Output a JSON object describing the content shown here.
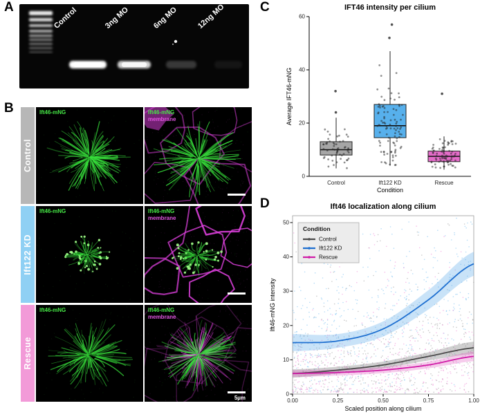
{
  "panel_a": {
    "label": "A",
    "lanes": [
      "Control",
      "3ng MO",
      "6ng MO",
      "12ng MO"
    ],
    "band_intensities": [
      1,
      0.82,
      0.2,
      0.06
    ]
  },
  "panel_b": {
    "label": "B",
    "green_color": "#38e23c",
    "magenta_color": "#e542e5",
    "scale_bar_label": "5µm",
    "rows": [
      {
        "name": "Control",
        "bar_color": "#b7b7b7",
        "left_caption": "Ift46-mNG",
        "right_caption_green": "Ift46-mNG",
        "right_caption_magenta": "membrane"
      },
      {
        "name": "Ift122 KD",
        "bar_color": "#8fd0f4",
        "left_caption": "Ift46-mNG",
        "right_caption_green": "Ift46-mNG",
        "right_caption_magenta": "membrane"
      },
      {
        "name": "Rescue",
        "bar_color": "#f29ad8",
        "left_caption": "Ift46-mNG",
        "right_caption_green": "Ift46-mNG",
        "right_caption_magenta": "membrane"
      }
    ]
  },
  "panel_c": {
    "label": "C"
  },
  "panel_d": {
    "label": "D"
  },
  "chart_data": [
    {
      "type": "boxplot",
      "title": "IFT46 intensity per cilium",
      "xlabel": "Condition",
      "ylabel": "Average IFT46-mNG",
      "ylim": [
        0,
        60
      ],
      "yticks": [
        0,
        20,
        40,
        60
      ],
      "categories": [
        "Control",
        "Ift122 KD",
        "Rescue"
      ],
      "colors": [
        "#a6a6a6",
        "#57b0ec",
        "#e36cc8"
      ],
      "boxes": [
        {
          "q1": 8,
          "median": 10,
          "q3": 13,
          "lo": 3,
          "hi": 22,
          "outliers": [
            24,
            32
          ]
        },
        {
          "q1": 14.5,
          "median": 19,
          "q3": 27,
          "lo": 4,
          "hi": 47,
          "outliers": [
            52,
            57
          ]
        },
        {
          "q1": 5.5,
          "median": 7.5,
          "q3": 9.5,
          "lo": 2.5,
          "hi": 15,
          "outliers": [
            31
          ]
        }
      ],
      "jitter_counts": [
        55,
        95,
        75
      ],
      "grid": false,
      "legend_position": "none"
    },
    {
      "type": "scatter-smooth",
      "title": "Ift46 localization along cilium",
      "xlabel": "Scaled position along cilium",
      "ylabel": "Ift46-mNG intensity",
      "xlim": [
        0,
        1
      ],
      "ylim": [
        0,
        52
      ],
      "xticks": [
        0,
        0.25,
        0.5,
        0.75,
        1
      ],
      "xtick_labels": [
        "0.00",
        "0.25",
        "0.50",
        "0.75",
        "1.00"
      ],
      "yticks": [
        0,
        10,
        20,
        30,
        40,
        50
      ],
      "legend_title": "Condition",
      "legend_position": "top-left",
      "points_per_series": 500,
      "series": [
        {
          "name": "Control",
          "point_color": "#9a9a9a",
          "line_color": "#4a4a4a",
          "band_color": "#6a6a6a",
          "x": [
            0,
            0.25,
            0.5,
            0.75,
            1
          ],
          "y": [
            6,
            7,
            8.5,
            11,
            13.5
          ],
          "ci": [
            1.2,
            1,
            1,
            1.2,
            1.8
          ],
          "scatter_sd": 7
        },
        {
          "name": "Ift122 KD",
          "point_color": "#74bdf0",
          "line_color": "#1e6fd0",
          "band_color": "#57a8ea",
          "x": [
            0,
            0.25,
            0.5,
            0.75,
            1
          ],
          "y": [
            15,
            15.5,
            19,
            27.5,
            38
          ],
          "ci": [
            2.5,
            2,
            2.2,
            2.8,
            3.5
          ],
          "scatter_sd": 10
        },
        {
          "name": "Rescue",
          "point_color": "#ef86d6",
          "line_color": "#d01ba6",
          "band_color": "#e35fc4",
          "x": [
            0,
            0.25,
            0.5,
            0.75,
            1
          ],
          "y": [
            6,
            6.3,
            7,
            8.5,
            11
          ],
          "ci": [
            1,
            0.9,
            0.9,
            1,
            1.4
          ],
          "scatter_sd": 6
        }
      ]
    }
  ]
}
